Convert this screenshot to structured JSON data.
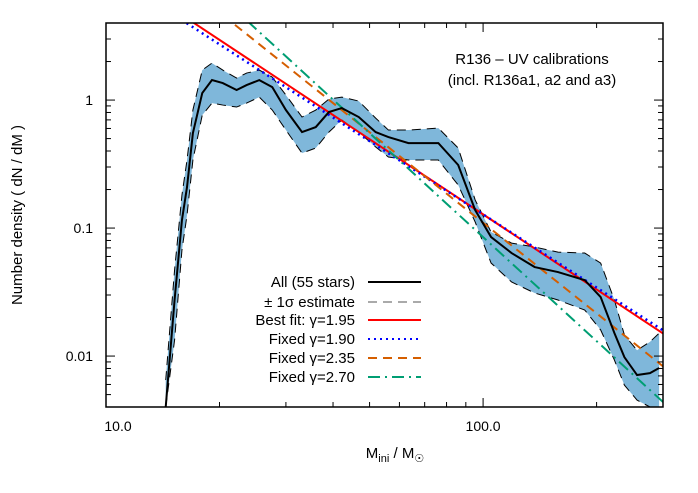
{
  "chart_data": {
    "type": "line",
    "title_lines": [
      "R136 – UV calibrations",
      "(incl. R136a1, a2 and a3)"
    ],
    "xlabel": {
      "main": "M",
      "sub": "ini",
      "sep": " / M",
      "sun": "☉"
    },
    "ylabel": "Number density ( dN / dM )",
    "x_scale": "log",
    "y_scale": "log",
    "xlim": [
      10,
      300
    ],
    "ylim": [
      0.004,
      4
    ],
    "x_tick_labels": [
      {
        "value": 10,
        "label": "10.0"
      },
      {
        "value": 100,
        "label": "100.0"
      }
    ],
    "y_tick_labels": [
      {
        "value": 0.01,
        "label": "0.01"
      },
      {
        "value": 0.1,
        "label": "0.1"
      },
      {
        "value": 1,
        "label": "1"
      }
    ],
    "grid": false,
    "legend_placement": "bottom-left-center",
    "band_color": "#7fb7da",
    "kde": {
      "x": [
        14.4,
        15.2,
        15.9,
        16.4,
        17.0,
        18.0,
        19.1,
        20.4,
        22.2,
        23.6,
        25.5,
        27.6,
        30.0,
        33.1,
        36.0,
        39.0,
        42.2,
        46.8,
        51.9,
        56.1,
        63.4,
        76.1,
        85.9,
        95.3,
        105,
        119,
        137,
        158,
        186,
        205,
        223,
        237,
        256,
        277,
        293
      ],
      "center": [
        0.004,
        0.0274,
        0.1155,
        0.209,
        0.552,
        1.134,
        1.433,
        1.358,
        1.197,
        1.31,
        1.433,
        1.263,
        0.836,
        0.562,
        0.615,
        0.806,
        0.866,
        0.737,
        0.562,
        0.514,
        0.461,
        0.461,
        0.311,
        0.138,
        0.0851,
        0.0638,
        0.0496,
        0.0453,
        0.0392,
        0.0289,
        0.0151,
        0.0098,
        0.00711,
        0.00736,
        0.00806
      ],
      "upper": [
        0.00649,
        0.047,
        0.181,
        0.34,
        0.836,
        1.715,
        1.945,
        1.715,
        1.485,
        1.625,
        1.715,
        1.512,
        1.094,
        0.737,
        0.836,
        1.018,
        1.055,
        0.982,
        0.723,
        0.583,
        0.583,
        0.604,
        0.422,
        0.1655,
        0.0931,
        0.0763,
        0.0711,
        0.0649,
        0.0638,
        0.0533,
        0.0274,
        0.0146,
        0.0111,
        0.0129,
        0.0151
      ],
      "lower": [
        0.004,
        0.0133,
        0.0673,
        0.126,
        0.34,
        0.763,
        0.947,
        0.914,
        0.882,
        0.947,
        1.055,
        0.836,
        0.583,
        0.385,
        0.422,
        0.562,
        0.698,
        0.562,
        0.43,
        0.359,
        0.34,
        0.34,
        0.217,
        0.1114,
        0.0533,
        0.0379,
        0.0311,
        0.0274,
        0.0229,
        0.016,
        0.0093,
        0.00593,
        0.00453,
        0.004,
        0.004
      ]
    },
    "series": [
      {
        "name": "All (55 stars)",
        "kind": "kde-center",
        "color": "#000000",
        "dash": "solid"
      },
      {
        "name": "± 1σ estimate",
        "kind": "kde-band",
        "color": "#555555",
        "dash": "dashed"
      },
      {
        "name": "Best fit: γ=1.95",
        "kind": "powerlaw",
        "gamma": 1.95,
        "value_at_100": 0.128,
        "color": "#ff0000",
        "dash": "solid"
      },
      {
        "name": "Fixed γ=1.90",
        "kind": "powerlaw",
        "gamma": 1.9,
        "value_at_100": 0.128,
        "color": "#0000ff",
        "dash": "dotted"
      },
      {
        "name": "Fixed γ=2.35",
        "kind": "powerlaw",
        "gamma": 2.35,
        "value_at_100": 0.11,
        "color": "#d55e00",
        "dash": "dashed"
      },
      {
        "name": "Fixed γ=2.70",
        "kind": "powerlaw",
        "gamma": 2.7,
        "value_at_100": 0.085,
        "color": "#009e73",
        "dash": "dash-dot"
      }
    ]
  }
}
